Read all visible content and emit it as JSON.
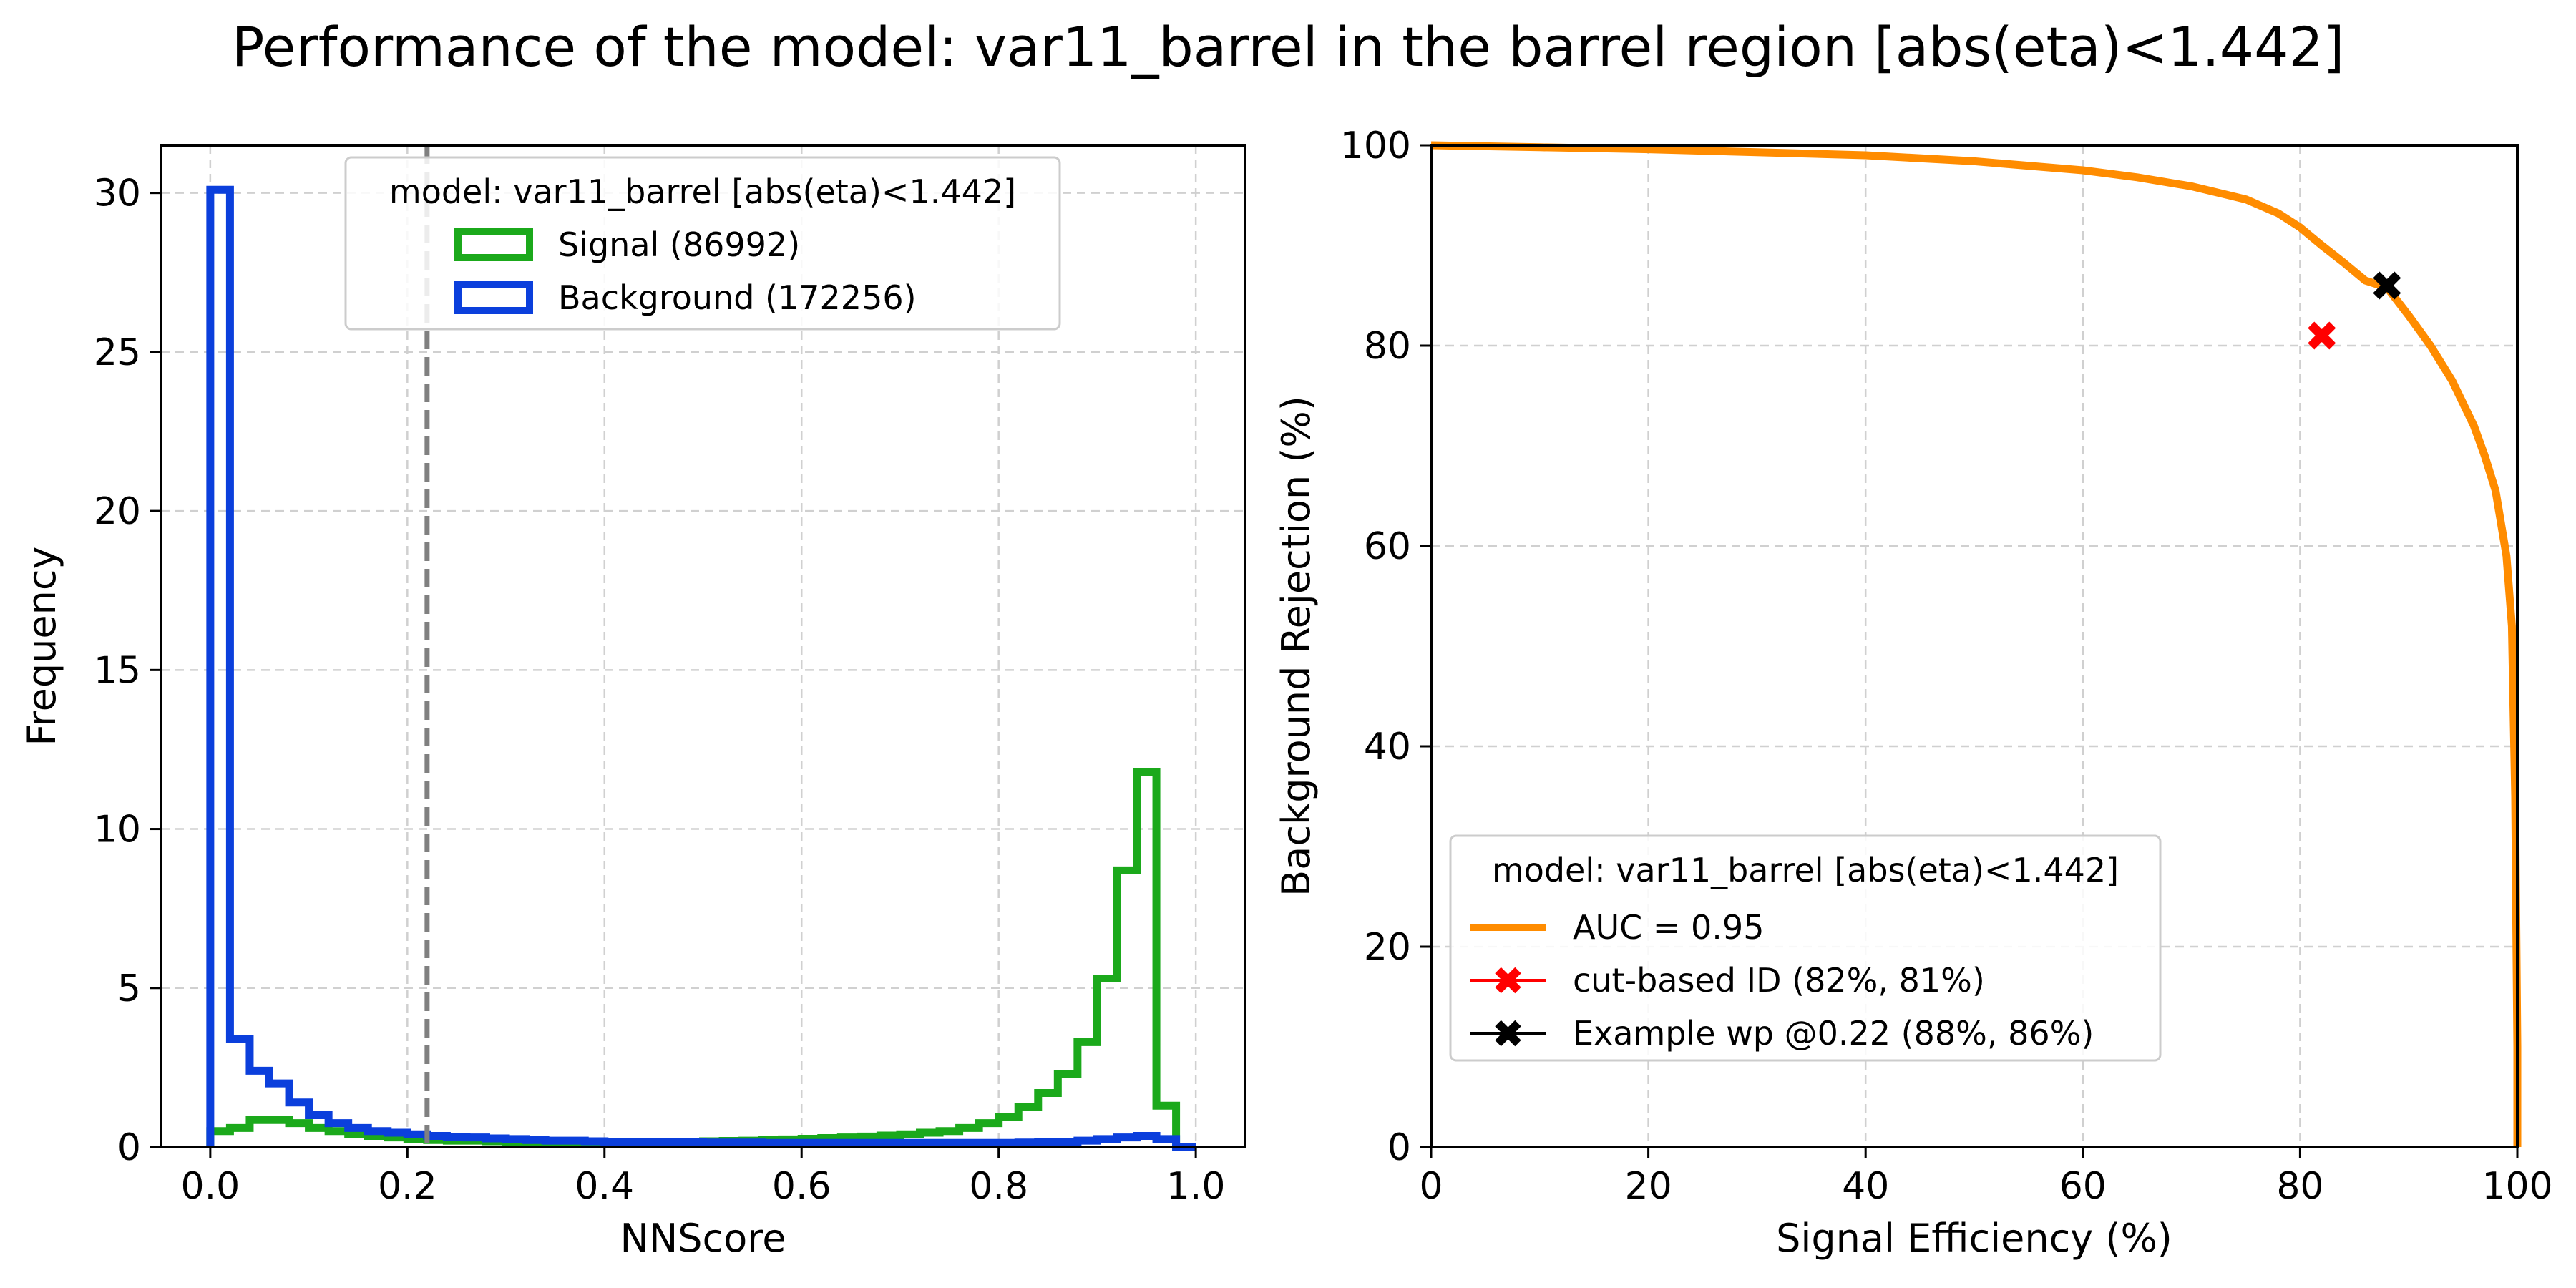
{
  "figure": {
    "suptitle": "Performance of the model: var11_barrel in the barrel region [abs(eta)<1.442]"
  },
  "chart_data": [
    {
      "type": "histogram",
      "xlabel": "NNScore",
      "ylabel": "Frequency",
      "xlim": [
        -0.05,
        1.05
      ],
      "ylim": [
        0,
        31.5
      ],
      "xticks": [
        0.0,
        0.2,
        0.4,
        0.6,
        0.8,
        1.0
      ],
      "xtick_labels": [
        "0.0",
        "0.2",
        "0.4",
        "0.6",
        "0.8",
        "1.0"
      ],
      "yticks": [
        0,
        5,
        10,
        15,
        20,
        25,
        30
      ],
      "ytick_labels": [
        "0",
        "5",
        "10",
        "15",
        "20",
        "25",
        "30"
      ],
      "grid": true,
      "threshold_line": 0.22,
      "bin_edges": [
        0.0,
        0.02,
        0.04,
        0.06,
        0.08,
        0.1,
        0.12,
        0.14,
        0.16,
        0.18,
        0.2,
        0.22,
        0.24,
        0.26,
        0.28,
        0.3,
        0.32,
        0.34,
        0.36,
        0.38,
        0.4,
        0.42,
        0.44,
        0.46,
        0.48,
        0.5,
        0.52,
        0.54,
        0.56,
        0.58,
        0.6,
        0.62,
        0.64,
        0.66,
        0.68,
        0.7,
        0.72,
        0.74,
        0.76,
        0.78,
        0.8,
        0.82,
        0.84,
        0.86,
        0.88,
        0.9,
        0.92,
        0.94,
        0.96,
        0.98,
        1.0
      ],
      "legend": {
        "title": "model: var11_barrel [abs(eta)<1.442]",
        "placement": "top-center"
      },
      "series": [
        {
          "name": "Signal (86992)",
          "color": "#1ba91b",
          "values": [
            0.5,
            0.6,
            0.85,
            0.85,
            0.75,
            0.6,
            0.5,
            0.4,
            0.35,
            0.3,
            0.25,
            0.22,
            0.2,
            0.2,
            0.18,
            0.17,
            0.16,
            0.16,
            0.15,
            0.15,
            0.15,
            0.15,
            0.16,
            0.16,
            0.17,
            0.18,
            0.19,
            0.2,
            0.22,
            0.24,
            0.26,
            0.28,
            0.3,
            0.33,
            0.36,
            0.4,
            0.45,
            0.5,
            0.6,
            0.75,
            0.95,
            1.25,
            1.7,
            2.3,
            3.3,
            5.3,
            8.7,
            11.8,
            1.3,
            0.0
          ]
        },
        {
          "name": "Background (172256)",
          "color": "#0b3fdc",
          "values": [
            30.1,
            3.4,
            2.4,
            2.0,
            1.4,
            1.0,
            0.75,
            0.6,
            0.5,
            0.45,
            0.4,
            0.35,
            0.32,
            0.3,
            0.27,
            0.25,
            0.22,
            0.2,
            0.2,
            0.18,
            0.17,
            0.16,
            0.16,
            0.15,
            0.15,
            0.14,
            0.14,
            0.14,
            0.13,
            0.13,
            0.13,
            0.13,
            0.13,
            0.13,
            0.13,
            0.13,
            0.13,
            0.13,
            0.13,
            0.13,
            0.13,
            0.14,
            0.15,
            0.17,
            0.2,
            0.25,
            0.3,
            0.35,
            0.25,
            0.0
          ]
        }
      ]
    },
    {
      "type": "line",
      "xlabel": "Signal Efficiency (%)",
      "ylabel": "Background Rejection (%)",
      "xlim": [
        0,
        100
      ],
      "ylim": [
        0,
        100
      ],
      "xticks": [
        0,
        20,
        40,
        60,
        80,
        100
      ],
      "xtick_labels": [
        "0",
        "20",
        "40",
        "60",
        "80",
        "100"
      ],
      "yticks": [
        0,
        20,
        40,
        60,
        80,
        100
      ],
      "ytick_labels": [
        "0",
        "20",
        "40",
        "60",
        "80",
        "100"
      ],
      "grid": true,
      "legend": {
        "title": "model: var11_barrel [abs(eta)<1.442]",
        "placement": "lower-left"
      },
      "series": [
        {
          "name": "AUC = 0.95",
          "color": "#ff8c00",
          "x": [
            0,
            10,
            20,
            30,
            40,
            50,
            60,
            65,
            70,
            75,
            78,
            80,
            82,
            84,
            86,
            88,
            90,
            92,
            94,
            96,
            97,
            98,
            99,
            99.5,
            99.8,
            100,
            100
          ],
          "y": [
            100,
            99.8,
            99.6,
            99.3,
            99.0,
            98.4,
            97.5,
            96.8,
            95.9,
            94.6,
            93.2,
            91.8,
            90.0,
            88.3,
            86.5,
            85.8,
            83.0,
            80.0,
            76.5,
            72.0,
            69.0,
            65.5,
            59.0,
            52.0,
            35.0,
            10.0,
            0.0
          ]
        }
      ],
      "markers": [
        {
          "name": "cut-based ID (82%, 81%)",
          "color": "#ff0000",
          "x": 82,
          "y": 81
        },
        {
          "name": "Example wp @0.22 (88%, 86%)",
          "color": "#000000",
          "x": 88,
          "y": 86
        }
      ]
    }
  ]
}
